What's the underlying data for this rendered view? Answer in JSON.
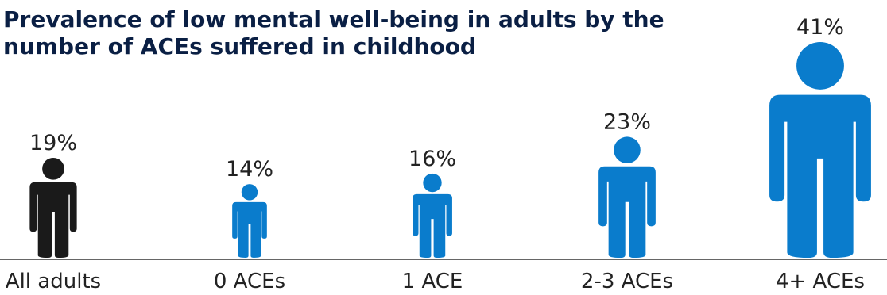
{
  "chart_data": {
    "type": "bar",
    "title": "Prevalence of low mental well-being in adults by the number of ACEs suffered in childhood",
    "categories": [
      "All adults",
      "0 ACEs",
      "1 ACE",
      "2-3 ACEs",
      "4+ ACEs"
    ],
    "values": [
      19,
      14,
      16,
      23,
      41
    ],
    "value_labels": [
      "19%",
      "14%",
      "16%",
      "23%",
      "41%"
    ],
    "unit": "%",
    "mark": "person-icon",
    "colors": [
      "#1a1a1a",
      "#0a7ccc",
      "#0a7ccc",
      "#0a7ccc",
      "#0a7ccc"
    ]
  }
}
